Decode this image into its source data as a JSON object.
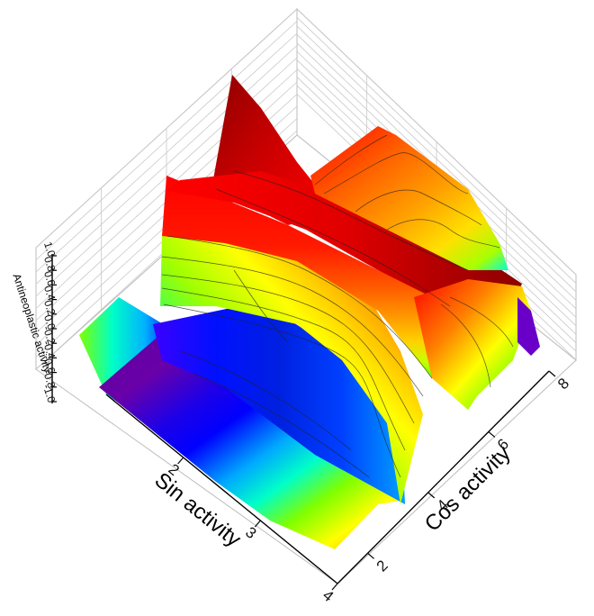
{
  "chart_data": {
    "type": "surface3d",
    "title": "",
    "xlabel": "Sin activity",
    "ylabel": "Cos activity",
    "zlabel": "Antineoplastic activity",
    "x_ticks": [
      "2",
      "3",
      "4"
    ],
    "y_ticks": [
      "2",
      "4",
      "6",
      "8"
    ],
    "z_ticks": [
      "1.0",
      "0.8",
      "0.6",
      "0.4",
      "0.2",
      "0.0",
      "-0.2",
      "-0.4",
      "-0.6",
      "-0.8",
      "-1.0"
    ],
    "xlim": [
      1,
      4
    ],
    "ylim": [
      1,
      8
    ],
    "zlim": [
      -1,
      1
    ],
    "colormap": [
      "#6a00a8",
      "#0000ff",
      "#00d8ff",
      "#7fff00",
      "#ffff00",
      "#ff8c00",
      "#ff0000",
      "#8b0000"
    ],
    "grid": true
  }
}
